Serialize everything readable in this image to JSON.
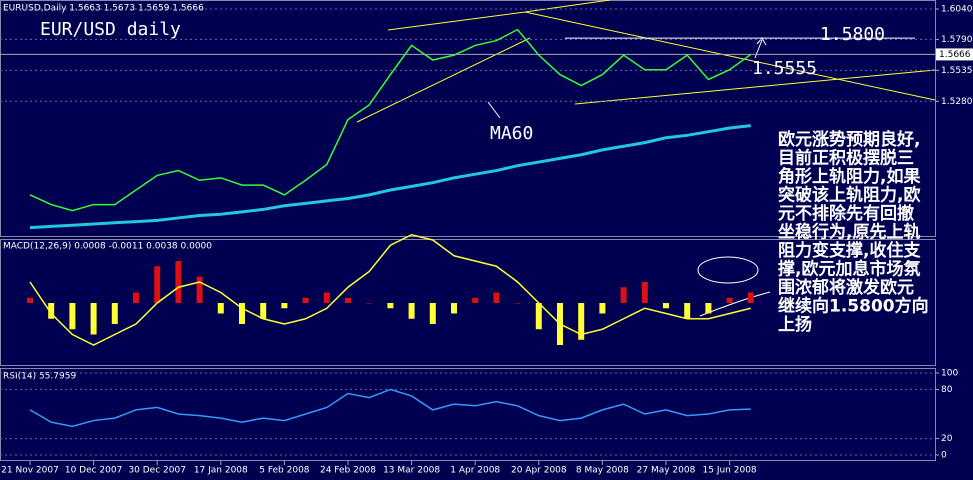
{
  "chart_data": [
    {
      "type": "line",
      "header": "EURUSD,Daily 1.5663 1.5673 1.5659 1.5666",
      "title": "EUR/USD daily",
      "categories": [
        "21 Nov 2007",
        null,
        null,
        "10 Dec 2007",
        null,
        null,
        "30 Dec 2007",
        null,
        null,
        "17 Jan 2008",
        null,
        null,
        "5 Feb 2008",
        null,
        null,
        "24 Feb 2008",
        null,
        null,
        "13 Mar 2008",
        null,
        null,
        "1 Apr 2008",
        null,
        null,
        "20 Apr 2008",
        null,
        null,
        "8 May 2008",
        null,
        null,
        "27 May 2008",
        null,
        null,
        "15 Jun 2008",
        null
      ],
      "series": [
        {
          "color": "#33ff33",
          "values": [
            1.451,
            1.443,
            1.438,
            1.443,
            1.443,
            1.455,
            1.467,
            1.471,
            1.463,
            1.465,
            1.459,
            1.459,
            1.451,
            1.463,
            1.476,
            1.513,
            1.525,
            1.55,
            1.574,
            1.562,
            1.566,
            1.574,
            1.578,
            1.587,
            1.566,
            1.55,
            1.541,
            1.55,
            1.566,
            1.554,
            1.554,
            1.566,
            1.546,
            1.554,
            1.5666
          ]
        },
        {
          "name": "MA60",
          "color": "#22c8e0",
          "values": [
            1.424,
            1.425,
            1.426,
            1.427,
            1.428,
            1.429,
            1.43,
            1.432,
            1.434,
            1.435,
            1.437,
            1.439,
            1.442,
            1.444,
            1.446,
            1.448,
            1.451,
            1.455,
            1.458,
            1.461,
            1.465,
            1.468,
            1.471,
            1.475,
            1.478,
            1.481,
            1.484,
            1.488,
            1.491,
            1.494,
            1.498,
            1.5,
            1.503,
            1.506,
            1.508
          ]
        }
      ],
      "ylim": [
        1.4163,
        1.6114
      ],
      "yticks": [
        {
          "value": 1.604,
          "label": "1.6040"
        },
        {
          "value": 1.579,
          "label": "1.5790"
        },
        {
          "value": 1.5535,
          "label": "1.5535"
        },
        {
          "value": 1.528,
          "label": "1.5280"
        }
      ],
      "current_price": {
        "value": 1.5666,
        "label": "1.5666"
      },
      "levels": [
        {
          "value": 1.58,
          "label": "1.5800"
        },
        {
          "value": 1.5555,
          "label": "1.5555"
        }
      ],
      "annotation": [
        "欧元涨势预期良好,",
        "目前正积极摆脱三",
        "角形上轨阻力,如果",
        "突破该上轨阻力,欧",
        "元不排除先有回撤",
        "坐稳行为,原先上轨",
        "阻力变支撑,收住支",
        "撑,欧元加息市场氛",
        "围浓郁将激发欧元",
        "继续向1.5800方向",
        "上扬"
      ]
    },
    {
      "type": "macd",
      "title": "MACD(12,26,9) 0.0008 -0.0011 0.0038 0.0000",
      "ylim": [
        -0.012,
        0.012
      ],
      "series": [
        {
          "type": "bar",
          "color": "#dd1111",
          "negative_color": "#ffff33",
          "values": [
            0.001,
            -0.003,
            -0.005,
            -0.006,
            -0.004,
            0.002,
            0.007,
            0.008,
            0.005,
            -0.002,
            -0.004,
            -0.003,
            -0.001,
            0.001,
            0.002,
            0.001,
            0,
            -0.001,
            -0.003,
            -0.004,
            -0.002,
            0.001,
            0.002,
            0,
            -0.005,
            -0.008,
            -0.007,
            -0.002,
            0.003,
            0.004,
            -0.001,
            -0.003,
            -0.002,
            0.001,
            0.002
          ]
        },
        {
          "type": "line",
          "color": "#ffff33",
          "values": [
            0.004,
            -0.002,
            -0.006,
            -0.008,
            -0.006,
            -0.004,
            0,
            0.003,
            0.004,
            0.002,
            -0.001,
            -0.003,
            -0.004,
            -0.003,
            -0.001,
            0.003,
            0.006,
            0.011,
            0.013,
            0.012,
            0.009,
            0.008,
            0.007,
            0.004,
            0,
            -0.004,
            -0.006,
            -0.005,
            -0.003,
            -0.001,
            -0.002,
            -0.003,
            -0.003,
            -0.002,
            -0.001
          ]
        }
      ]
    },
    {
      "type": "line",
      "title": "RSI(14) 55.7959",
      "ylim": [
        0,
        100
      ],
      "yticks": [
        0,
        20,
        80,
        100
      ],
      "series": [
        {
          "color": "#3399ff",
          "values": [
            55,
            40,
            35,
            42,
            45,
            55,
            58,
            50,
            48,
            45,
            40,
            45,
            42,
            50,
            58,
            75,
            70,
            80,
            72,
            55,
            62,
            60,
            65,
            60,
            48,
            42,
            45,
            55,
            62,
            50,
            55,
            48,
            50,
            55,
            56
          ]
        }
      ]
    }
  ]
}
